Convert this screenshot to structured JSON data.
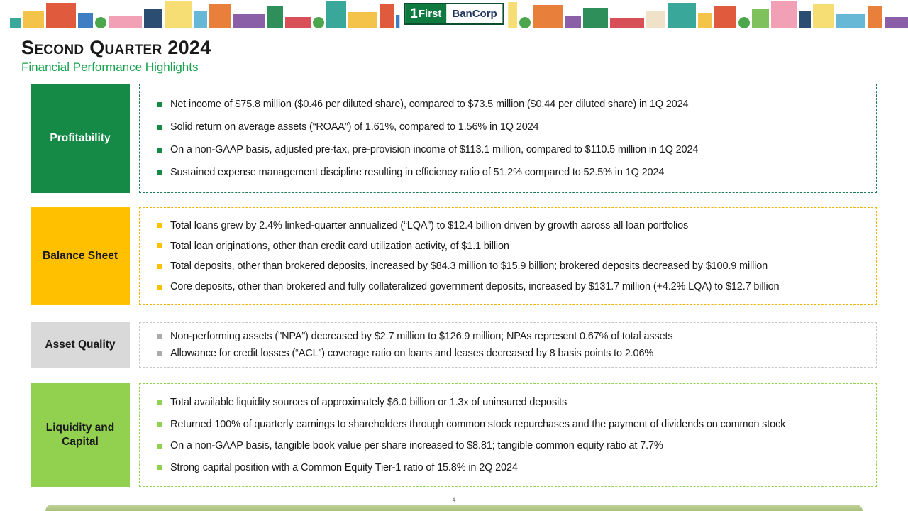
{
  "logo": {
    "one": "1",
    "first": "First",
    "bancorp": "BanCorp"
  },
  "slide": {
    "title": "Second Quarter 2024",
    "subtitle": "Financial Performance Highlights"
  },
  "footer": {
    "page_number": "4"
  },
  "colors": {
    "profitability_green": "#148a46",
    "balance_sheet_gold": "#ffc000",
    "asset_quality_gray": "#d9d9d9",
    "liquidity_light_green": "#92d050",
    "subtitle_green": "#16a24b"
  },
  "sections": [
    {
      "label": "Profitability",
      "color": "#148a46",
      "bullets": [
        "Net income of $75.8 million ($0.46 per diluted share), compared to $73.5 million ($0.44 per diluted share) in 1Q 2024",
        "Solid return on average assets (“ROAA”) of 1.61%, compared to 1.56% in 1Q 2024",
        "On a non-GAAP basis, adjusted pre-tax, pre-provision income of $113.1 million, compared to $110.5 million in 1Q 2024",
        "Sustained expense management discipline resulting in efficiency ratio of 51.2% compared to 52.5% in 1Q 2024"
      ]
    },
    {
      "label": "Balance Sheet",
      "color": "#ffc000",
      "bullets": [
        "Total loans grew by 2.4% linked-quarter annualized (“LQA”) to $12.4 billion driven by growth across all loan portfolios",
        "Total loan originations, other than credit card utilization activity, of $1.1 billion",
        "Total deposits, other than brokered deposits, increased by $84.3 million to $15.9 billion; brokered deposits decreased by $100.9 million",
        "Core deposits, other than brokered and fully collateralized government deposits, increased by $131.7 million (+4.2% LQA) to $12.7 billion"
      ]
    },
    {
      "label": "Asset Quality",
      "color": "#d9d9d9",
      "bullets": [
        "Non-performing assets (\"NPA”) decreased by $2.7 million to $126.9 million; NPAs represent 0.67% of total assets",
        "Allowance for credit losses (“ACL”) coverage ratio on loans and leases decreased by 8 basis points to 2.06%"
      ]
    },
    {
      "label": "Liquidity and Capital",
      "color": "#92d050",
      "bullets": [
        "Total available liquidity sources of approximately $6.0 billion or 1.3x of uninsured deposits",
        "Returned 100% of quarterly earnings to shareholders through common stock repurchases and the payment of dividends on common stock",
        "On a non-GAAP basis, tangible book value per share increased to $8.81; tangible common equity ratio at 7.7%",
        "Strong capital position with a Common Equity Tier-1 ratio of 15.8% in 2Q 2024"
      ]
    }
  ]
}
